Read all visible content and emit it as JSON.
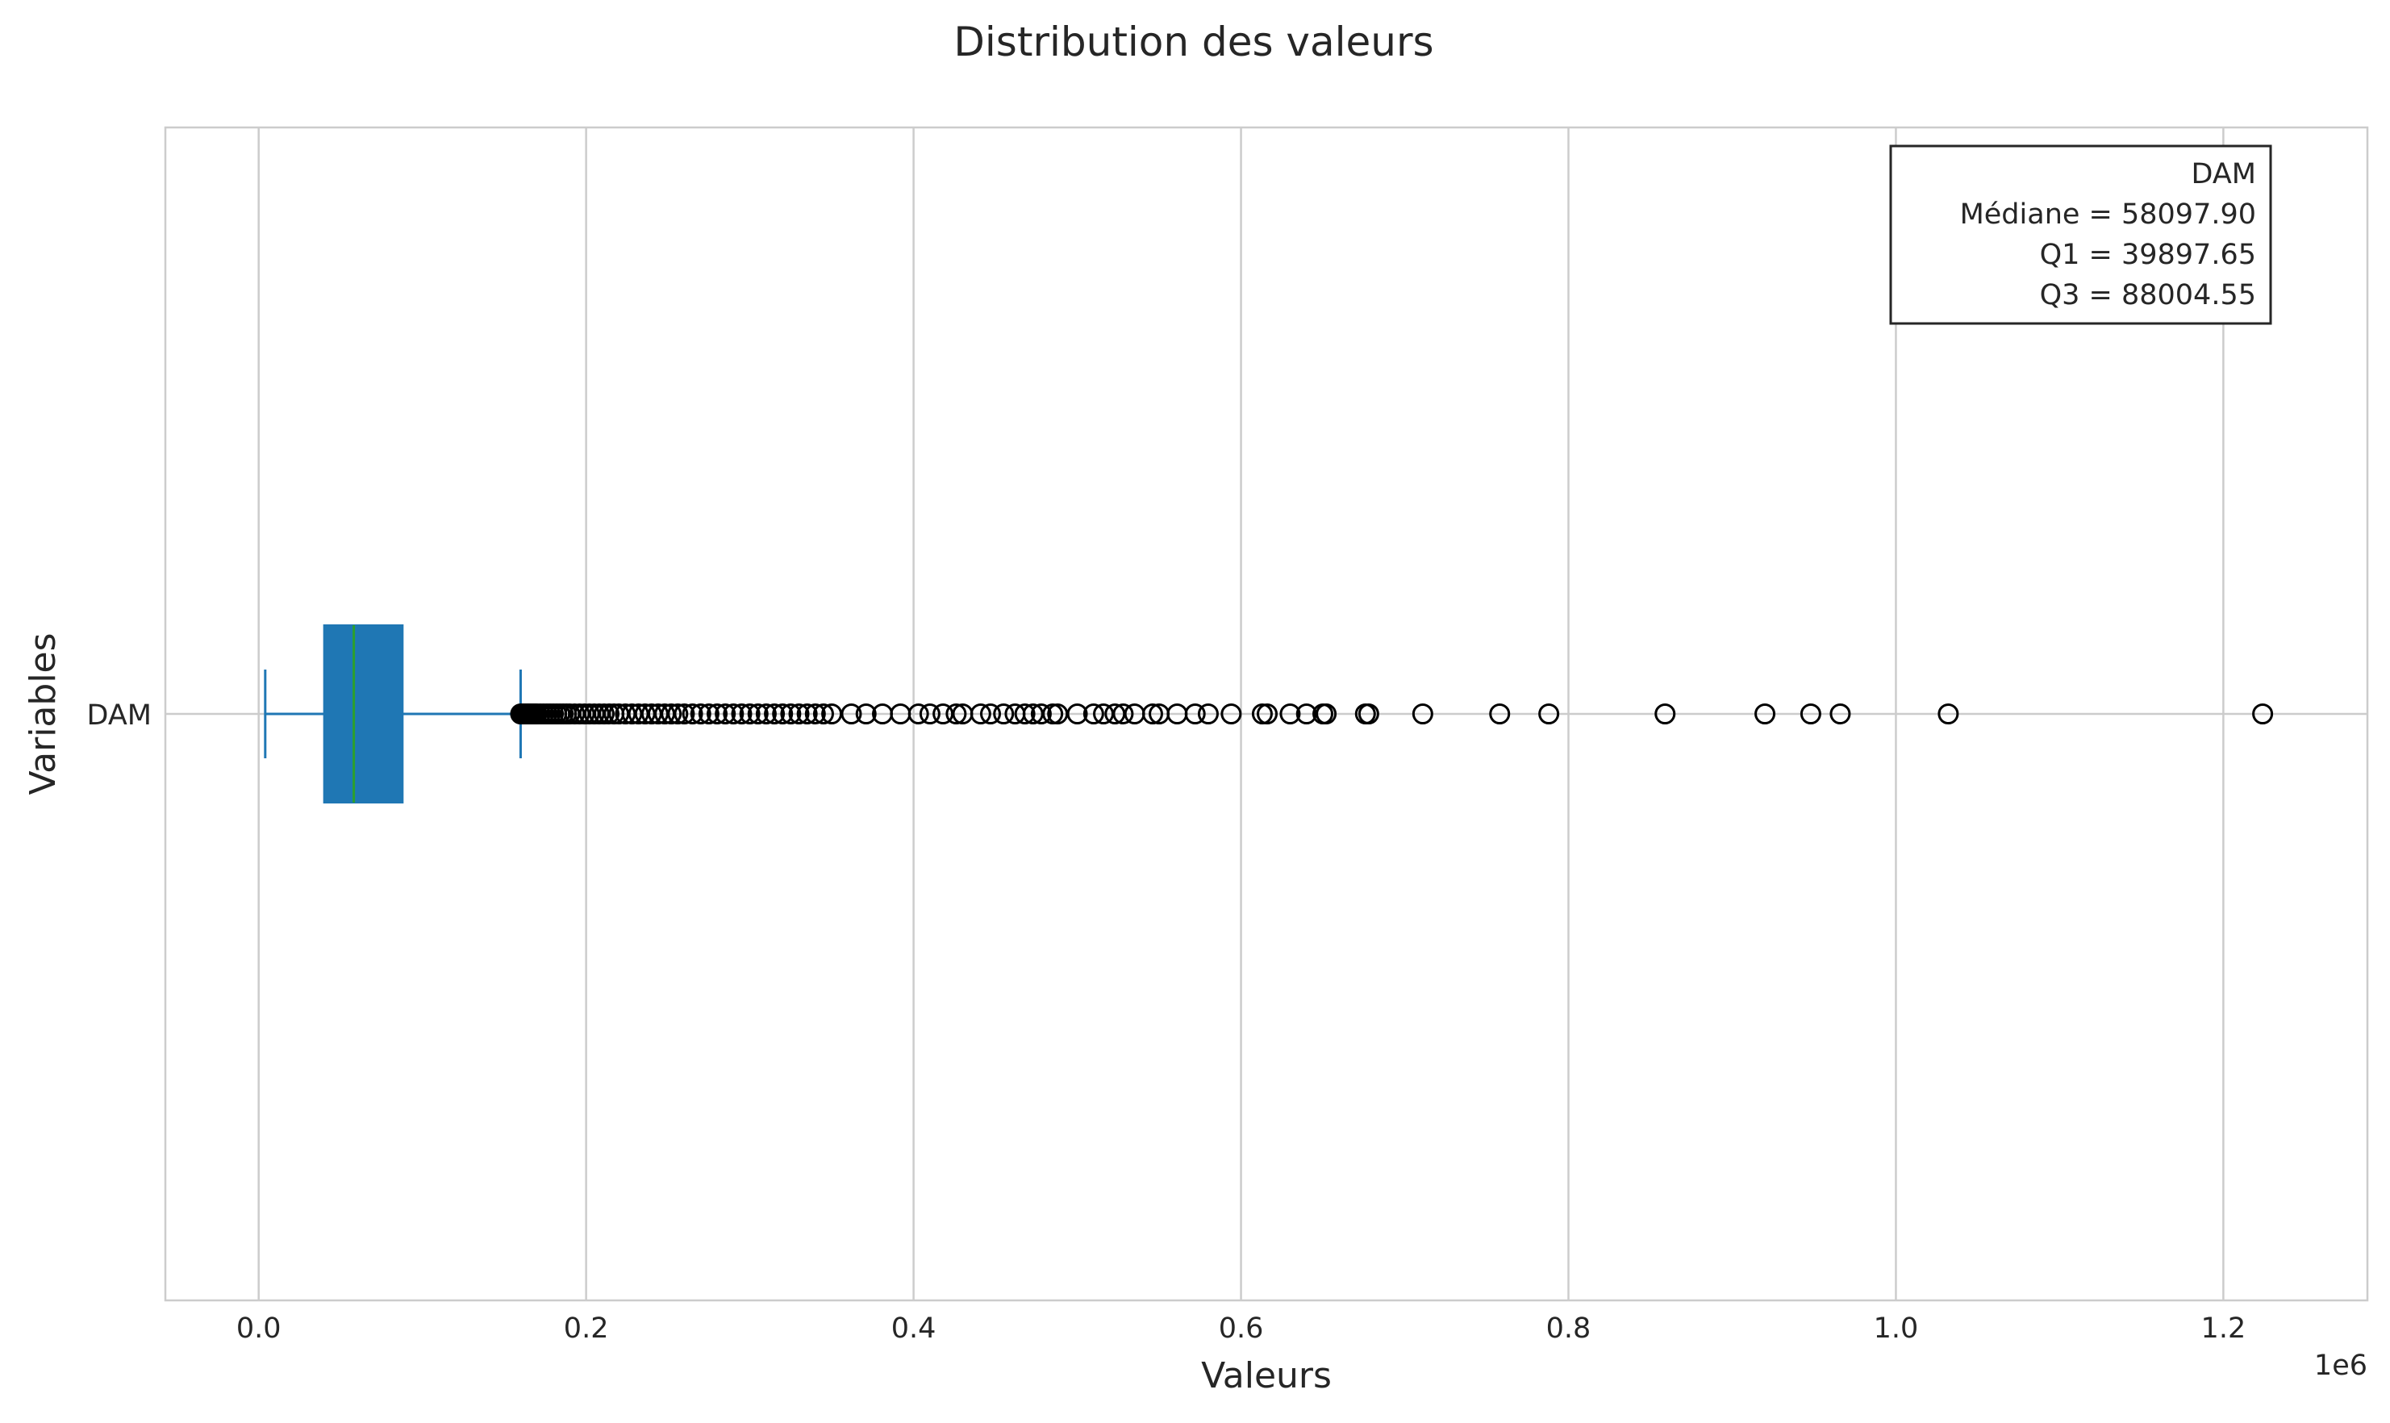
{
  "chart_data": {
    "type": "boxplot",
    "orientation": "horizontal",
    "title": "Distribution des valeurs",
    "xlabel": "Valeurs",
    "ylabel": "Variables",
    "x_scale_label": "1e6",
    "xlim": [
      -57000,
      1288000
    ],
    "xticks": [
      0,
      200000,
      400000,
      600000,
      800000,
      1000000,
      1200000
    ],
    "xtick_labels": [
      "0.0",
      "0.2",
      "0.4",
      "0.6",
      "0.8",
      "1.0",
      "1.2"
    ],
    "grid": true,
    "categories": [
      "DAM"
    ],
    "series": [
      {
        "name": "DAM",
        "whisker_low": 4000,
        "q1": 39897.65,
        "median": 58097.9,
        "q3": 88004.55,
        "whisker_high": 160000,
        "outliers": [
          160000,
          161000,
          162000,
          163000,
          164000,
          165000,
          166000,
          167000,
          168000,
          169000,
          170000,
          172000,
          174000,
          176000,
          178000,
          180000,
          182000,
          184000,
          186000,
          188000,
          190000,
          193000,
          196000,
          199000,
          202000,
          205000,
          208000,
          211000,
          214000,
          217000,
          220000,
          224000,
          228000,
          232000,
          236000,
          240000,
          244000,
          248000,
          252000,
          256000,
          260000,
          265000,
          270000,
          275000,
          280000,
          285000,
          290000,
          295000,
          300000,
          305000,
          310000,
          315000,
          320000,
          325000,
          330000,
          335000,
          340000,
          345000,
          350000,
          362000,
          371000,
          381000,
          392000,
          403000,
          410000,
          418000,
          426000,
          430000,
          441000,
          447000,
          455000,
          462000,
          468000,
          473000,
          478000,
          485000,
          488000,
          500000,
          510000,
          516000,
          523000,
          528000,
          535000,
          546000,
          550000,
          561000,
          572000,
          580000,
          594000,
          613000,
          616000,
          630000,
          640000,
          650000,
          652000,
          676000,
          678000,
          711000,
          758000,
          788000,
          859000,
          920000,
          948000,
          966000,
          1032000,
          1224000
        ]
      }
    ],
    "stats_box": {
      "title": "DAM",
      "lines": [
        "Médiane = 58097.90",
        "Q1 = 39897.65",
        "Q3 = 88004.55"
      ]
    },
    "colors": {
      "box": "#1f77b4",
      "median": "#2ca02c",
      "whisker": "#1f77b4",
      "grid": "#cccccc",
      "spine": "#cccccc",
      "outlier": "#000000",
      "text": "#262626"
    }
  }
}
